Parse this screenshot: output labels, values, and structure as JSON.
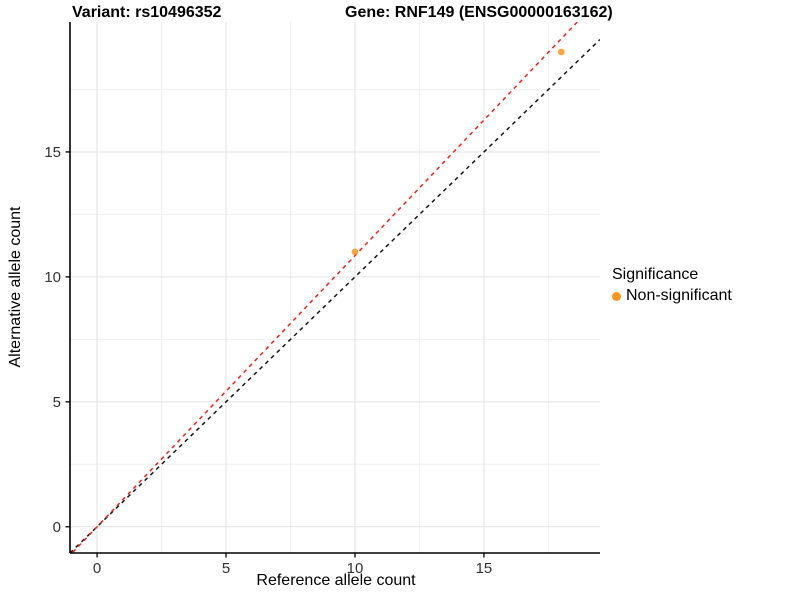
{
  "titles": {
    "variant": "Variant: rs10496352",
    "gene": "Gene: RNF149 (ENSG00000163162)"
  },
  "chart_data": {
    "type": "scatter",
    "xlabel": "Reference allele count",
    "ylabel": "Alternative allele count",
    "xlim": [
      -1.05,
      19.5
    ],
    "ylim": [
      -1.05,
      20.2
    ],
    "xticks": [
      0,
      5,
      10,
      15
    ],
    "yticks": [
      0,
      5,
      10,
      15
    ],
    "minor_xticks": [
      2.5,
      7.5,
      12.5,
      17.5
    ],
    "minor_yticks": [
      2.5,
      7.5,
      12.5,
      17.5
    ],
    "grid": "on",
    "points": [
      {
        "x": 10,
        "y": 11,
        "series": "Non-significant"
      },
      {
        "x": 18,
        "y": 19,
        "series": "Non-significant"
      }
    ],
    "abline_series": [
      {
        "name": "identity-line",
        "slope": 1.0,
        "intercept": 0,
        "color": "#151515",
        "style": "dashed"
      },
      {
        "name": "fitted-line",
        "slope": 1.085,
        "intercept": 0,
        "color": "#e8251d",
        "style": "dashed"
      }
    ],
    "point_color": "#f89821",
    "axis_color": "#000000",
    "tick_label_color": "#333333",
    "major_grid_color": "#e2e2e2",
    "minor_grid_color": "#efefef",
    "legend": {
      "title": "Significance",
      "position": "right",
      "items": [
        {
          "label": "Non-significant",
          "color": "#f89821"
        }
      ]
    }
  }
}
